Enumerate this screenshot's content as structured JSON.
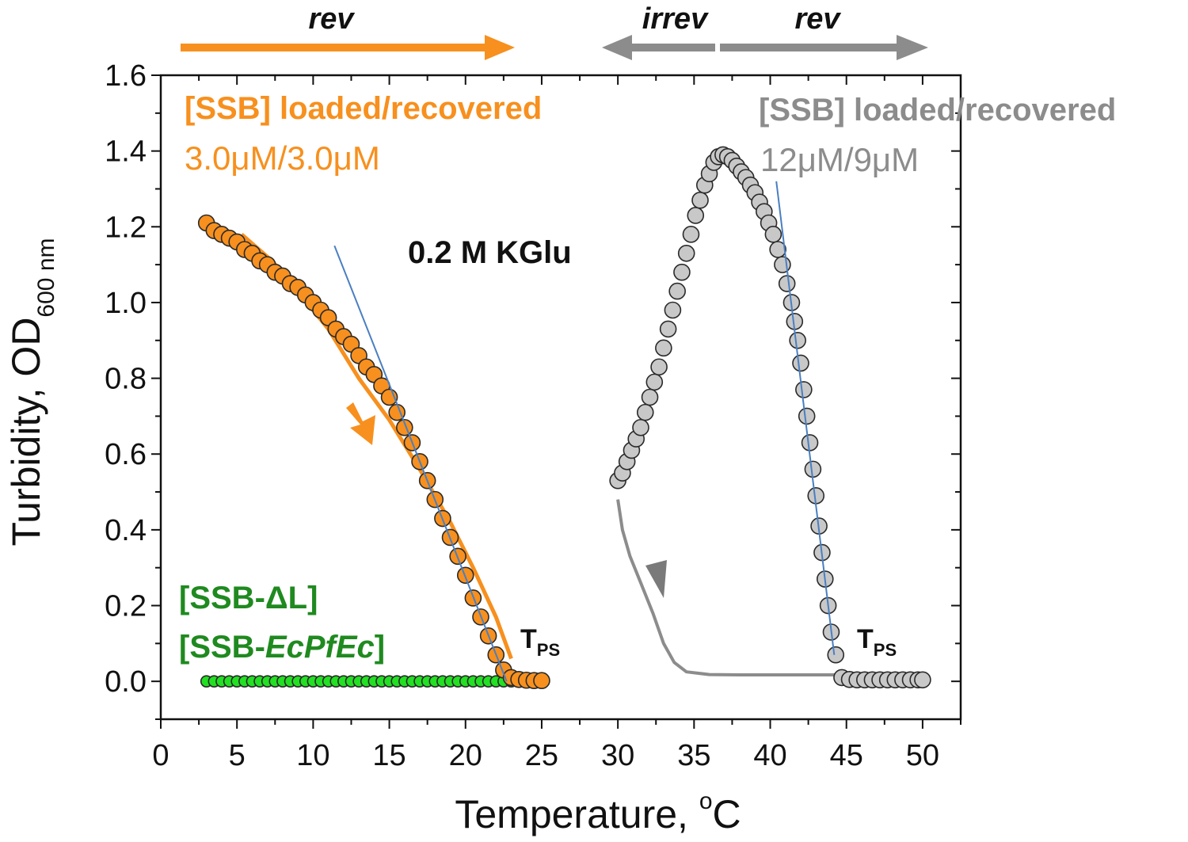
{
  "chart_data": {
    "type": "scatter",
    "xlabel": "Temperature, ",
    "xlabel_sup": "o",
    "xlabel_unit": "C",
    "ylabel": "Turbidity, OD",
    "ylabel_sub": "600 nm",
    "xlim": [
      0,
      52.5
    ],
    "ylim": [
      -0.1,
      1.6
    ],
    "xticks": [
      "0",
      "5",
      "10",
      "15",
      "20",
      "25",
      "30",
      "35",
      "40",
      "45",
      "50"
    ],
    "yticks": [
      "0.0",
      "0.2",
      "0.4",
      "0.6",
      "0.8",
      "1.0",
      "1.2",
      "1.4",
      "1.6"
    ],
    "grid": false,
    "colors": {
      "orange": "#f7901e",
      "gray": "#8c8c8c",
      "gray_marker": "#c8c8c8",
      "green": "#1f8a1f",
      "green_marker": "#22e022",
      "blue": "#4a7fc1"
    },
    "annotations": {
      "condition": "0.2 M KGlu",
      "orange_title": "[SSB] loaded/recovered",
      "orange_conc": "3.0μM/3.0μM",
      "gray_title": "[SSB] loaded/recovered",
      "gray_conc": "12μM/9μM",
      "green_line1": "[SSB-ΔL]",
      "green_line2_prefix": "[SSB-",
      "green_line2_italic": "EcPfEc",
      "green_line2_suffix": "]",
      "tps_left": "T",
      "tps_left_sub": "PS",
      "tps_right": "T",
      "tps_right_sub": "PS",
      "arrow_left_label": "rev",
      "arrow_mid_label": "irrev",
      "arrow_right_label": "rev"
    },
    "series": [
      {
        "color": "orange",
        "marker": "circle",
        "x": [
          3,
          3.5,
          4,
          4.5,
          5,
          5.5,
          6,
          6.5,
          7,
          7.5,
          8,
          8.5,
          9,
          9.5,
          10,
          10.5,
          11,
          11.5,
          12,
          12.5,
          13,
          13.5,
          14,
          14.5,
          15,
          15.5,
          16,
          16.5,
          17,
          17.5,
          18,
          18.5,
          19,
          19.5,
          20,
          20.5,
          21,
          21.5,
          22,
          22.5,
          23,
          23.5,
          24,
          24.5,
          25
        ],
        "y": [
          1.21,
          1.19,
          1.18,
          1.17,
          1.16,
          1.14,
          1.13,
          1.11,
          1.1,
          1.08,
          1.07,
          1.05,
          1.04,
          1.02,
          1.0,
          0.98,
          0.96,
          0.93,
          0.91,
          0.89,
          0.86,
          0.83,
          0.81,
          0.78,
          0.75,
          0.71,
          0.67,
          0.63,
          0.58,
          0.53,
          0.48,
          0.43,
          0.38,
          0.33,
          0.28,
          0.22,
          0.17,
          0.12,
          0.07,
          0.03,
          0.01,
          0.005,
          0.003,
          0.002,
          0.002
        ]
      },
      {
        "color": "green",
        "marker": "circle",
        "x": [
          3,
          3.5,
          4,
          4.5,
          5,
          5.5,
          6,
          6.5,
          7,
          7.5,
          8,
          8.5,
          9,
          9.5,
          10,
          10.5,
          11,
          11.5,
          12,
          12.5,
          13,
          13.5,
          14,
          14.5,
          15,
          15.5,
          16,
          16.5,
          17,
          17.5,
          18,
          18.5,
          19,
          19.5,
          20,
          20.5,
          21,
          21.5,
          22,
          22.5,
          23
        ],
        "y": [
          0,
          0,
          0,
          0,
          0,
          0,
          0,
          0,
          0,
          0,
          0,
          0,
          0,
          0,
          0,
          0,
          0,
          0,
          0,
          0,
          0,
          0,
          0,
          0,
          0,
          0,
          0,
          0,
          0,
          0,
          0,
          0,
          0,
          0,
          0,
          0,
          0,
          0,
          0,
          0,
          0
        ]
      },
      {
        "color": "gray",
        "marker": "circle",
        "x": [
          30,
          30.3,
          30.6,
          30.9,
          31.2,
          31.5,
          31.8,
          32.1,
          32.4,
          32.7,
          33,
          33.3,
          33.6,
          33.9,
          34.2,
          34.5,
          34.8,
          35.1,
          35.4,
          35.7,
          36,
          36.3,
          36.6,
          36.9,
          37.2,
          37.5,
          37.8,
          38.1,
          38.4,
          38.7,
          39,
          39.3,
          39.6,
          39.9,
          40.2,
          40.5,
          40.8,
          41.1,
          41.4,
          41.6,
          41.8,
          42,
          42.2,
          42.4,
          42.6,
          42.8,
          43,
          43.2,
          43.4,
          43.6,
          43.8,
          44,
          44.3,
          44.7,
          45.2,
          45.7,
          46.2,
          46.7,
          47.2,
          47.7,
          48.2,
          48.7,
          49.2,
          49.7,
          50
        ],
        "y": [
          0.53,
          0.55,
          0.58,
          0.61,
          0.64,
          0.67,
          0.71,
          0.75,
          0.79,
          0.83,
          0.88,
          0.93,
          0.98,
          1.03,
          1.08,
          1.13,
          1.18,
          1.23,
          1.27,
          1.31,
          1.34,
          1.37,
          1.385,
          1.39,
          1.385,
          1.375,
          1.36,
          1.345,
          1.33,
          1.31,
          1.29,
          1.265,
          1.24,
          1.21,
          1.18,
          1.14,
          1.1,
          1.05,
          1.0,
          0.95,
          0.9,
          0.84,
          0.77,
          0.7,
          0.63,
          0.56,
          0.49,
          0.41,
          0.34,
          0.27,
          0.2,
          0.13,
          0.07,
          0.01,
          0.005,
          0.004,
          0.004,
          0.004,
          0.004,
          0.004,
          0.004,
          0.004,
          0.004,
          0.004,
          0.004
        ]
      }
    ],
    "lines": [
      {
        "color": "orange",
        "x": [
          5.3,
          7.3,
          9,
          11,
          13,
          15,
          17,
          19,
          20.5,
          22,
          23
        ],
        "y": [
          1.18,
          1.11,
          1.03,
          0.93,
          0.8,
          0.69,
          0.56,
          0.42,
          0.3,
          0.17,
          0.06
        ]
      },
      {
        "color": "gray",
        "x": [
          30,
          30.3,
          30.8,
          31.5,
          32.3,
          33,
          33.7,
          34.5,
          36,
          38,
          44.3
        ],
        "y": [
          0.48,
          0.4,
          0.33,
          0.26,
          0.18,
          0.1,
          0.05,
          0.025,
          0.018,
          0.017,
          0.017
        ]
      },
      {
        "color": "blue",
        "x": [
          11.4,
          22.7
        ],
        "y": [
          1.15,
          0.0
        ]
      },
      {
        "color": "blue",
        "x": [
          40.4,
          44.2
        ],
        "y": [
          1.32,
          0.07
        ]
      }
    ]
  }
}
